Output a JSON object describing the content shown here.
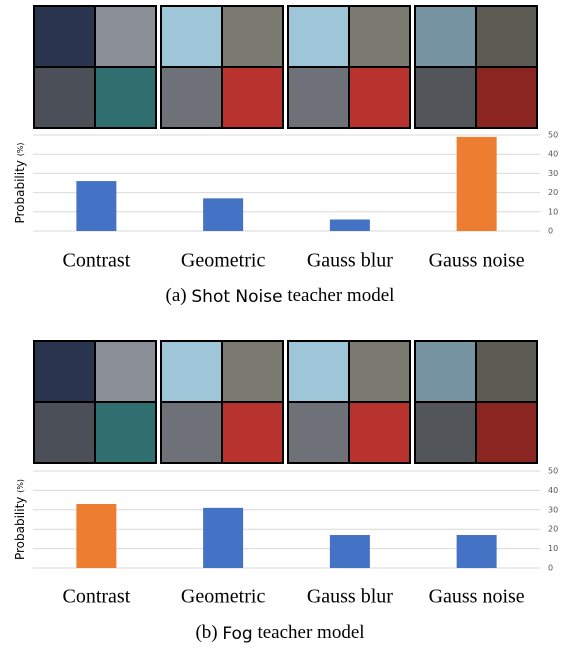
{
  "chart_data": [
    {
      "type": "bar",
      "caption_label": "(a)",
      "caption_name": "Shot Noise",
      "caption_text": "teacher model",
      "y_label": "Probability",
      "y_label_unit": "(%)",
      "categories": [
        "Contrast",
        "Geometric",
        "Gauss blur",
        "Gauss noise"
      ],
      "values": [
        26,
        17,
        6,
        49
      ],
      "colors": [
        "#4472c4",
        "#4472c4",
        "#4472c4",
        "#ed7d31"
      ],
      "ylim": [
        0,
        50
      ],
      "yticks": [
        0,
        10,
        20,
        30,
        40,
        50
      ],
      "grid": true
    },
    {
      "type": "bar",
      "caption_label": "(b)",
      "caption_name": "Fog",
      "caption_text": "teacher model",
      "y_label": "Probability",
      "y_label_unit": "(%)",
      "categories": [
        "Contrast",
        "Geometric",
        "Gauss blur",
        "Gauss noise"
      ],
      "values": [
        33,
        31,
        17,
        17
      ],
      "colors": [
        "#ed7d31",
        "#4472c4",
        "#4472c4",
        "#4472c4"
      ],
      "ylim": [
        0,
        50
      ],
      "yticks": [
        0,
        10,
        20,
        30,
        40,
        50
      ],
      "grid": true
    }
  ]
}
